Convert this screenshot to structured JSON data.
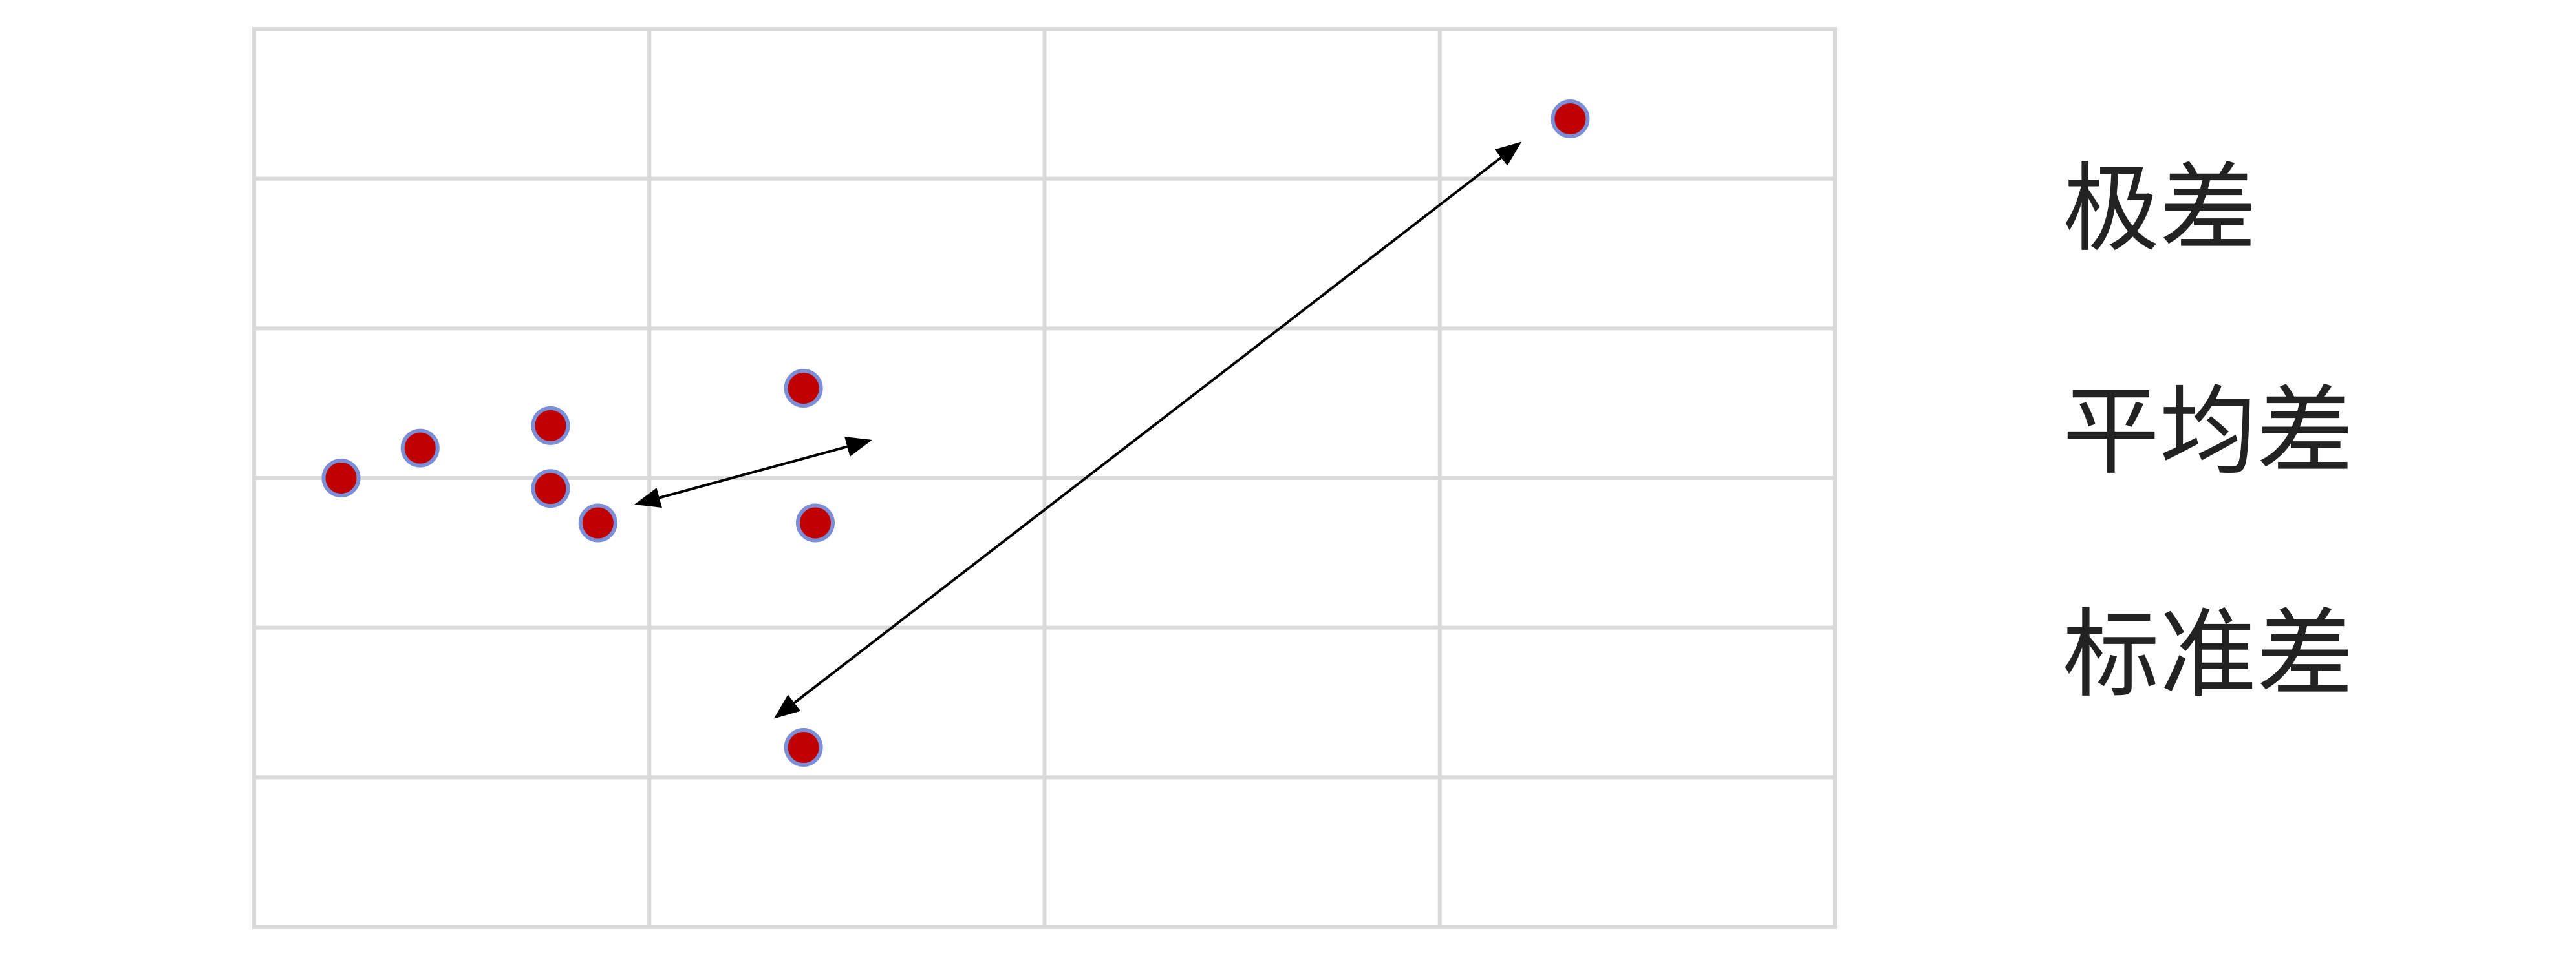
{
  "labels": {
    "range": "极差",
    "mean_deviation": "平均差",
    "standard_deviation": "标准差"
  },
  "grid": {
    "columns": 4,
    "rows": 6
  },
  "points": [
    {
      "x": 0.22,
      "y": 3.0
    },
    {
      "x": 0.42,
      "y": 3.2
    },
    {
      "x": 0.75,
      "y": 3.35
    },
    {
      "x": 0.75,
      "y": 2.93
    },
    {
      "x": 0.87,
      "y": 2.7
    },
    {
      "x": 1.39,
      "y": 1.2
    },
    {
      "x": 1.39,
      "y": 3.6
    },
    {
      "x": 1.42,
      "y": 2.7
    },
    {
      "x": 3.33,
      "y": 5.4
    }
  ],
  "colors": {
    "grid": "#d9d9d9",
    "point_fill": "#c00000",
    "point_stroke": "#7b8ed6",
    "arrow": "#000000",
    "text": "#222222"
  }
}
